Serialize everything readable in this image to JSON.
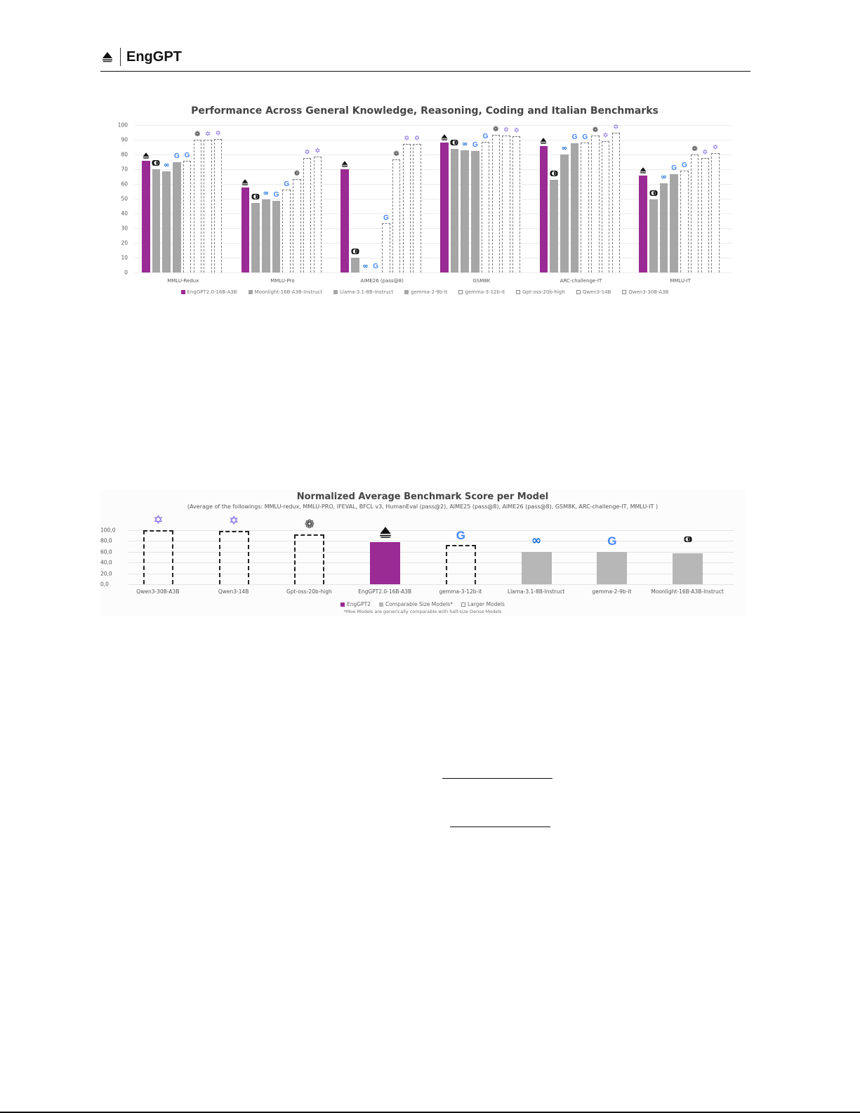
{
  "header": {
    "brand": "EngGPT",
    "logo_icon": "enggpt-logo-icon"
  },
  "icons": {
    "enggpt": "⏶",
    "moonlight": "◐",
    "meta": "∞",
    "google": "G",
    "openai": "❁",
    "qwen": "✡"
  },
  "colors": {
    "enggpt": "#9a2a94",
    "comparable": "#a6a6a6",
    "larger_border": "#7a7a7a"
  },
  "chart_data": [
    {
      "type": "bar",
      "title": "Performance Across General Knowledge, Reasoning, Coding and Italian Benchmarks",
      "xlabel": "",
      "ylabel": "",
      "ylim": [
        0,
        100
      ],
      "yticks": [
        "0",
        "10",
        "20",
        "30",
        "40",
        "50",
        "60",
        "70",
        "80",
        "90",
        "100"
      ],
      "grid": true,
      "legend_position": "bottom",
      "categories": [
        "MMLU-Redux",
        "MMLU-Pro",
        "AIME26 (pass@8)",
        "GSM8K",
        "ARC-challenge-IT",
        "MMLU-IT"
      ],
      "series": [
        {
          "name": "EngGPT2.0-16B-A3B",
          "style": "solid-purple",
          "icon": "enggpt",
          "values": [
            75.5,
            57.5,
            70,
            88,
            85.5,
            65.5
          ]
        },
        {
          "name": "Moonlight-16B-A3B-Instruct",
          "style": "solid-gray",
          "icon": "moonlight",
          "values": [
            70,
            47,
            10,
            84,
            63,
            49.5
          ]
        },
        {
          "name": "Llama-3.1-8B-Instruct",
          "style": "solid-gray",
          "icon": "meta",
          "values": [
            68.5,
            49.5,
            0,
            83,
            80,
            60.5
          ]
        },
        {
          "name": "gemma-2-9b-it",
          "style": "solid-gray",
          "icon": "google",
          "values": [
            75,
            48.5,
            0,
            82.5,
            87.5,
            66.5
          ]
        },
        {
          "name": "gemma-3-12b-it",
          "style": "dashed",
          "icon": "google",
          "values": [
            75.5,
            56,
            33.5,
            88.5,
            88,
            69
          ]
        },
        {
          "name": "Gpt-oss-20b-high",
          "style": "dashed",
          "icon": "openai",
          "values": [
            90,
            63.5,
            76.5,
            93.5,
            93,
            80
          ]
        },
        {
          "name": "Qwen3-14B",
          "style": "dashed",
          "icon": "qwen",
          "values": [
            90,
            77.5,
            87,
            93,
            89,
            77.5
          ]
        },
        {
          "name": "Qwen3-30B-A3B",
          "style": "dashed",
          "icon": "qwen",
          "values": [
            90.5,
            78.5,
            87,
            92.5,
            95,
            81
          ]
        }
      ],
      "legend": [
        {
          "label": "EngGPT2.0-16B-A3B",
          "style": "solid-purple"
        },
        {
          "label": "Moonlight-16B-A3B-Instruct",
          "style": "solid-gray"
        },
        {
          "label": "Llama-3.1-8B-Instruct",
          "style": "solid-gray"
        },
        {
          "label": "gemma-2-9b-it",
          "style": "solid-gray"
        },
        {
          "label": "gemma-3-12b-it",
          "style": "dashed"
        },
        {
          "label": "Gpt-oss-20b-high",
          "style": "dashed"
        },
        {
          "label": "Qwen3-14B",
          "style": "dashed"
        },
        {
          "label": "Qwen3-30B-A3B",
          "style": "dashed"
        }
      ]
    },
    {
      "type": "bar",
      "title": "Normalized Average Benchmark Score per Model",
      "subtitle": "(Average of the followings: MMLU-redux, MMLU-PRO, IFEVAL, BFCL v3, HumanEval (pass@2), AIME25 (pass@8), AIME26 (pass@8), GSM8K, ARC-challenge-IT, MMLU-IT )",
      "xlabel": "",
      "ylabel": "",
      "ylim": [
        0,
        100
      ],
      "yticks": [
        "0,0",
        "20,0",
        "40,0",
        "60,0",
        "80,0",
        "100,0"
      ],
      "grid": true,
      "legend_position": "bottom",
      "categories": [
        "Qwen3-30B-A3B",
        "Qwen3-14B",
        "Gpt-oss-20b-high",
        "EngGPT2.0-16B-A3B",
        "gemma-3-12b-it",
        "Llama-3.1-8B-Instruct",
        "gemma-2-9b-it",
        "Moonlight-16B-A3B-Instruct"
      ],
      "values": [
        100,
        98.5,
        92.5,
        78,
        72.5,
        60,
        60,
        57.5
      ],
      "styles": [
        "dashed",
        "dashed",
        "dashed",
        "purple",
        "dashed",
        "gray",
        "gray",
        "gray"
      ],
      "icons": [
        "qwen",
        "qwen",
        "openai",
        "enggpt",
        "google",
        "meta",
        "google",
        "moonlight"
      ],
      "legend": [
        {
          "label": "EngGPT2",
          "style": "purple"
        },
        {
          "label": "Comparable Size Models*",
          "style": "gray"
        },
        {
          "label": "Larger Models",
          "style": "dashed"
        }
      ],
      "footnote": "*Moe Models are generically comparable with half-size Dense Models"
    }
  ]
}
